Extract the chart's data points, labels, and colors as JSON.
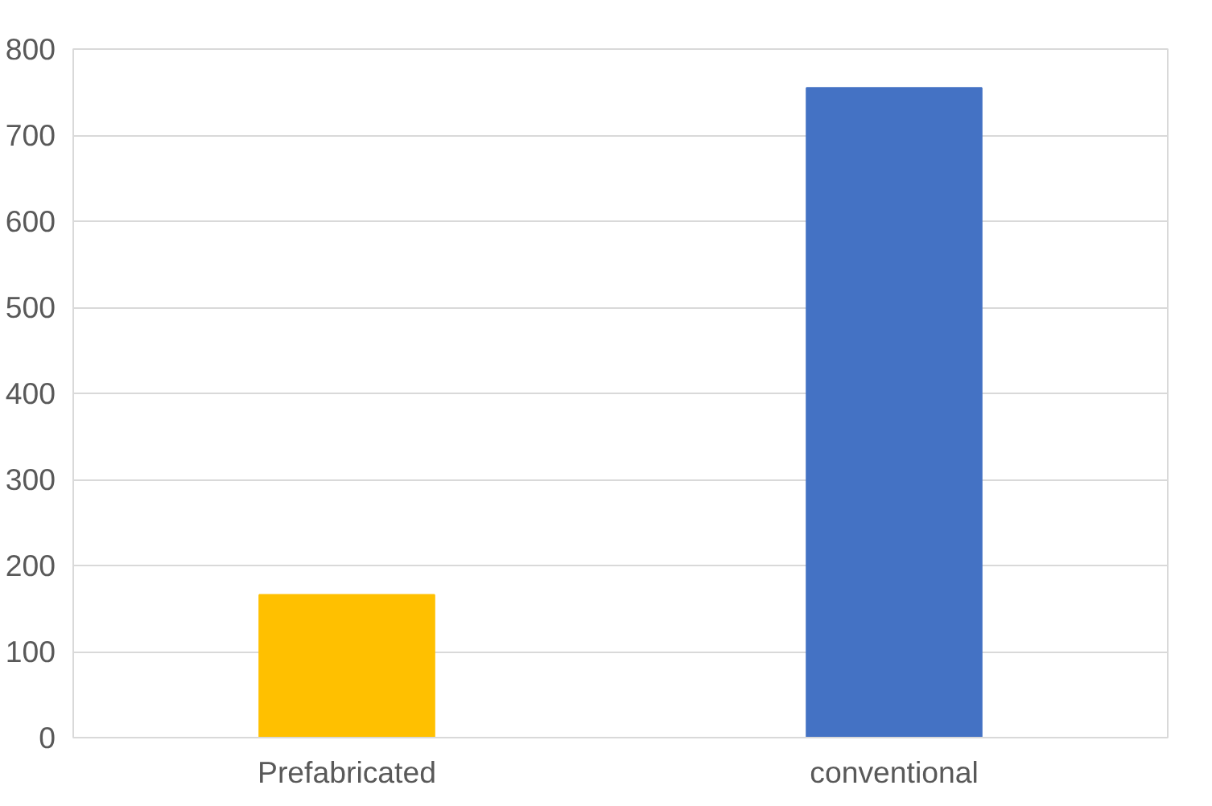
{
  "chart_data": {
    "type": "bar",
    "categories": [
      "Prefabricated",
      "conventional"
    ],
    "values": [
      166,
      755
    ],
    "colors": [
      "#ffc000",
      "#4472c4"
    ],
    "ylim": [
      0,
      800
    ],
    "yticks": [
      0,
      100,
      200,
      300,
      400,
      500,
      600,
      700,
      800
    ],
    "grid": "y"
  }
}
